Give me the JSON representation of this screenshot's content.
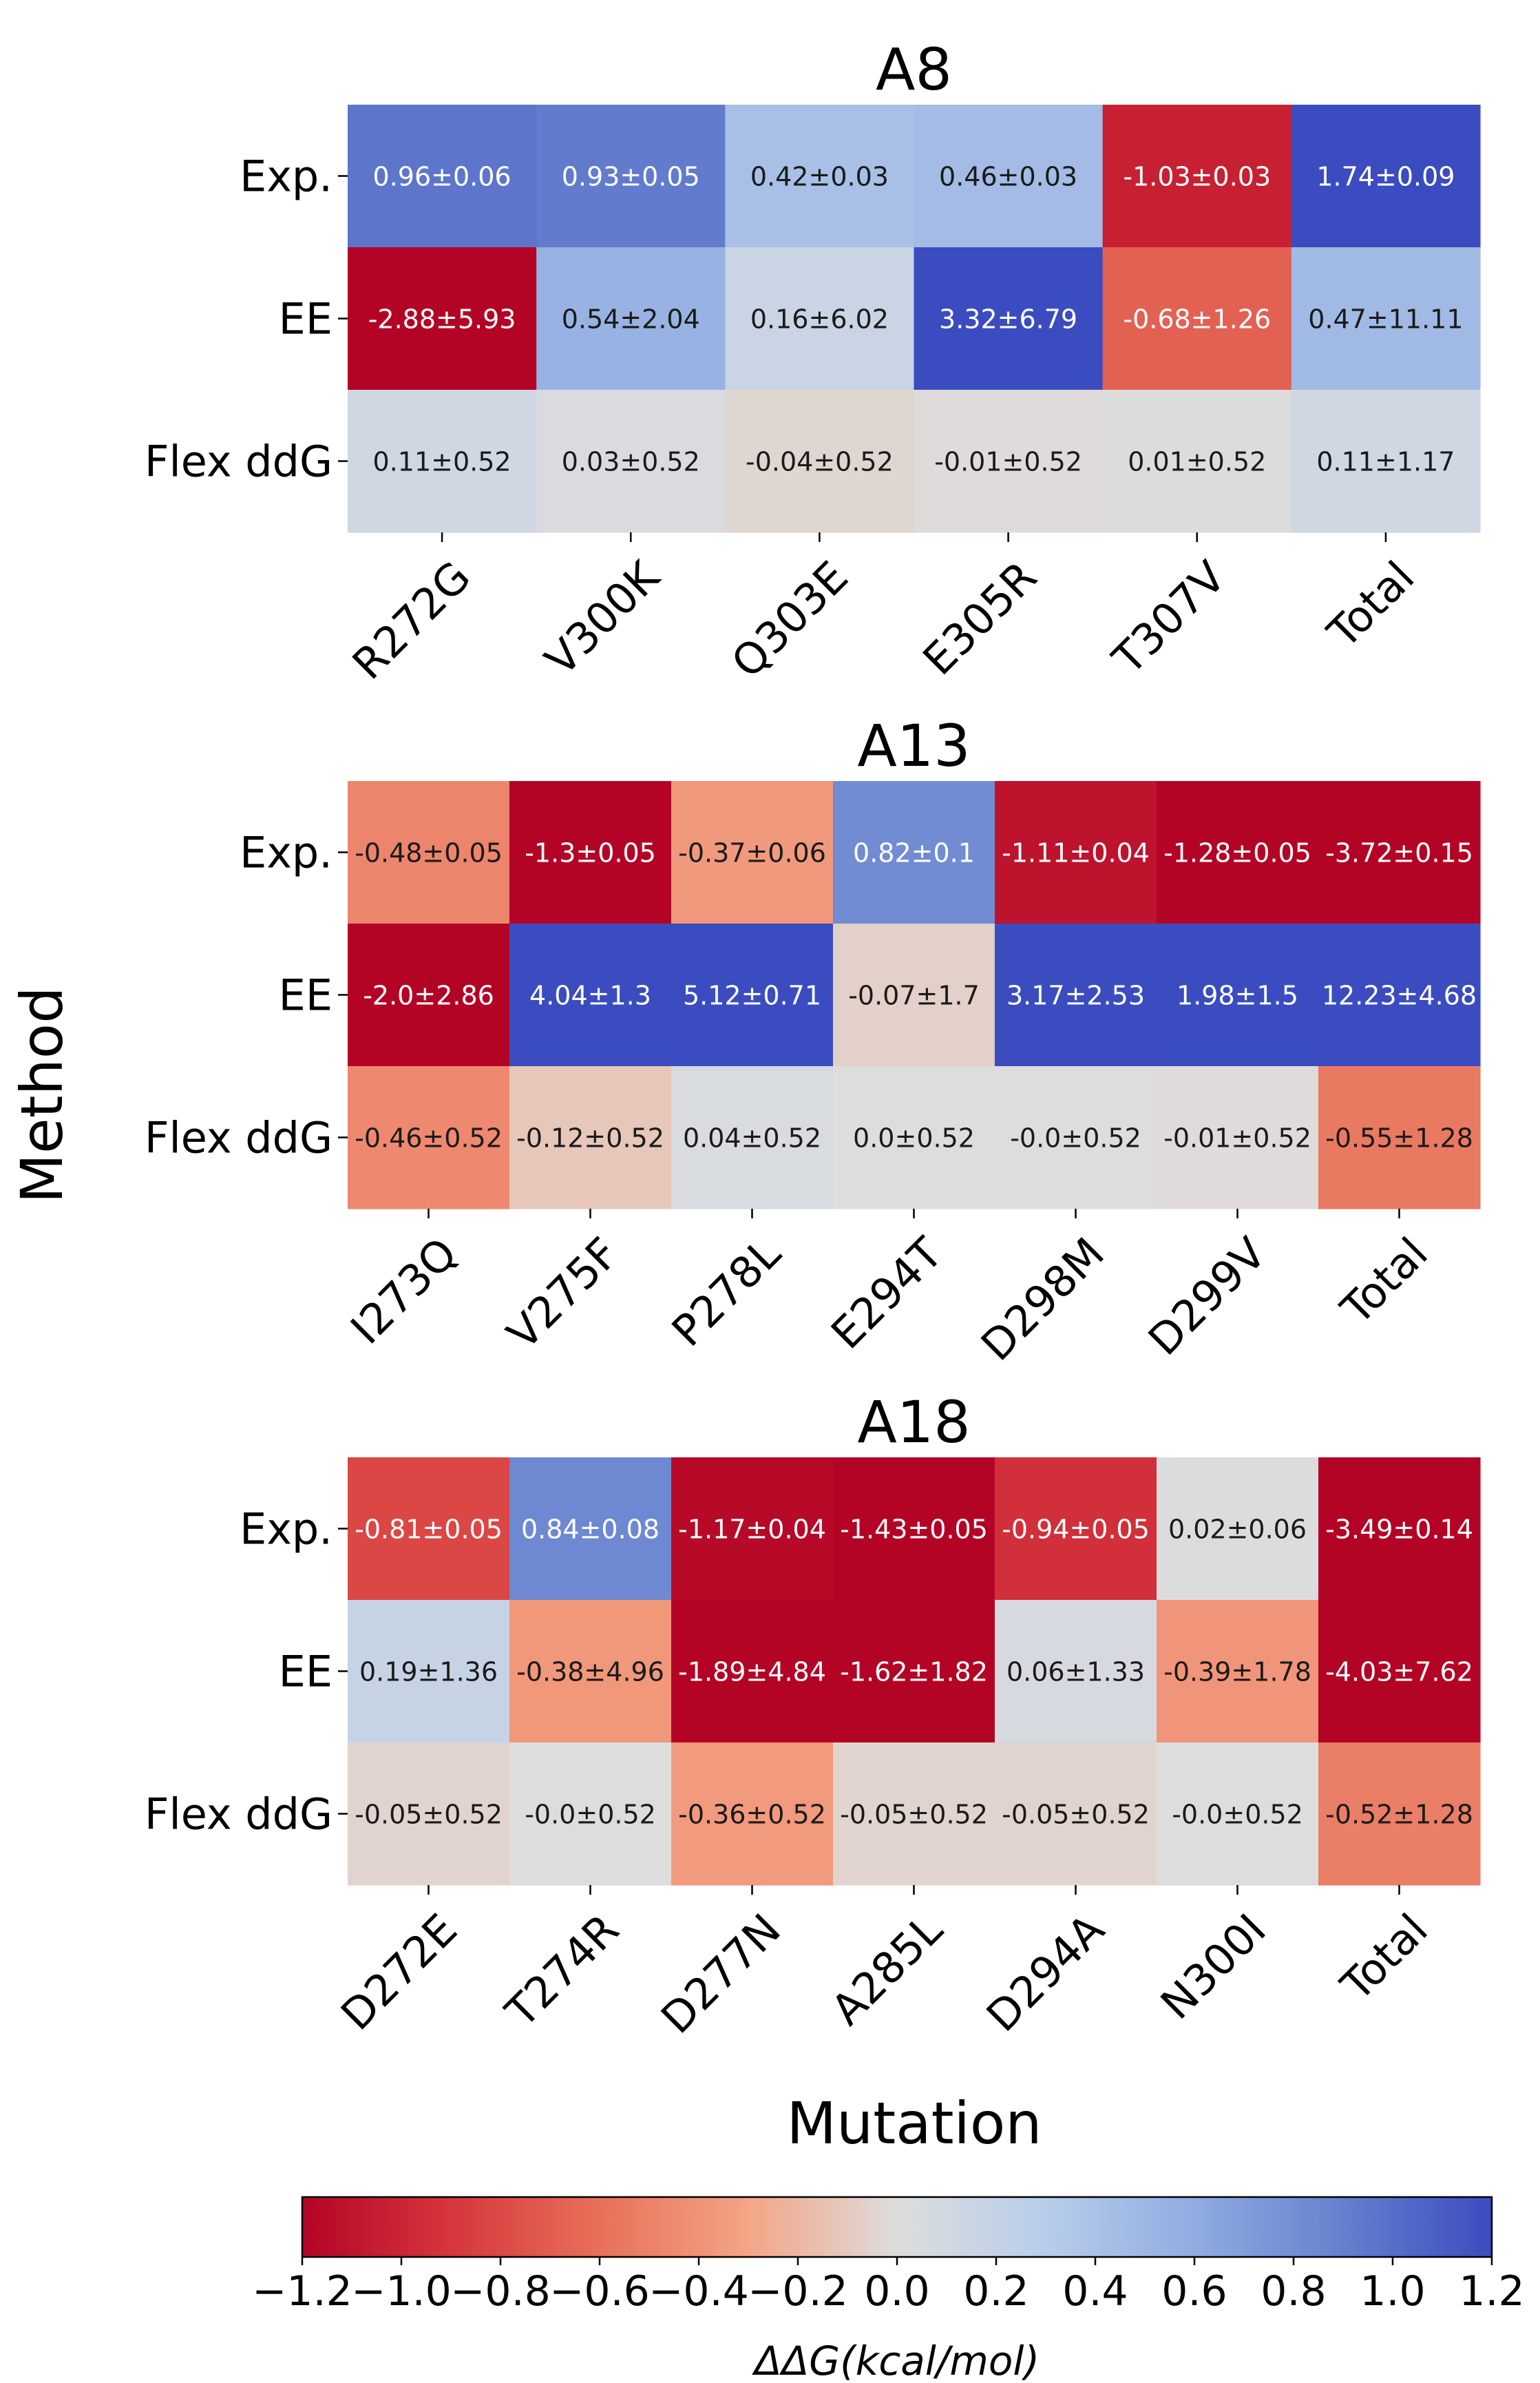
{
  "figure": {
    "ylabel": "Method",
    "xlabel": "Mutation",
    "colorbar": {
      "label": "ΔΔG(kcal/mol)",
      "vmin": -1.2,
      "vmax": 1.2,
      "ticks": [
        "−1.2",
        "−1.0",
        "−0.8",
        "−0.6",
        "−0.4",
        "−0.2",
        "0.0",
        "0.2",
        "0.4",
        "0.6",
        "0.8",
        "1.0",
        "1.2"
      ],
      "colormap": "coolwarm_r",
      "colors": {
        "negative_end": "#b40426",
        "center": "#dddddd",
        "positive_end": "#3b4cc0"
      }
    }
  },
  "chart_data": [
    {
      "type": "heatmap",
      "title": "A8",
      "rows": [
        "Exp.",
        "EE",
        "Flex ddG"
      ],
      "columns": [
        "R272G",
        "V300K",
        "Q303E",
        "E305R",
        "T307V",
        "Total"
      ],
      "values": [
        [
          0.96,
          0.93,
          0.42,
          0.46,
          -1.03,
          1.74
        ],
        [
          -2.88,
          0.54,
          0.16,
          3.32,
          -0.68,
          0.47
        ],
        [
          0.11,
          0.03,
          -0.04,
          -0.01,
          0.01,
          0.11
        ]
      ],
      "labels": [
        [
          "0.96±0.06",
          "0.93±0.05",
          "0.42±0.03",
          "0.46±0.03",
          "-1.03±0.03",
          "1.74±0.09"
        ],
        [
          "-2.88±5.93",
          "0.54±2.04",
          "0.16±6.02",
          "3.32±6.79",
          "-0.68±1.26",
          "0.47±11.11"
        ],
        [
          "0.11±0.52",
          "0.03±0.52",
          "-0.04±0.52",
          "-0.01±0.52",
          "0.01±0.52",
          "0.11±1.17"
        ]
      ]
    },
    {
      "type": "heatmap",
      "title": "A13",
      "rows": [
        "Exp.",
        "EE",
        "Flex ddG"
      ],
      "columns": [
        "I273Q",
        "V275F",
        "P278L",
        "E294T",
        "D298M",
        "D299V",
        "Total"
      ],
      "values": [
        [
          -0.48,
          -1.3,
          -0.37,
          0.82,
          -1.11,
          -1.28,
          -3.72
        ],
        [
          -2.0,
          4.04,
          5.12,
          -0.07,
          3.17,
          1.98,
          12.23
        ],
        [
          -0.46,
          -0.12,
          0.04,
          0.0,
          -0.0,
          -0.01,
          -0.55
        ]
      ],
      "labels": [
        [
          "-0.48±0.05",
          "-1.3±0.05",
          "-0.37±0.06",
          "0.82±0.1",
          "-1.11±0.04",
          "-1.28±0.05",
          "-3.72±0.15"
        ],
        [
          "-2.0±2.86",
          "4.04±1.3",
          "5.12±0.71",
          "-0.07±1.7",
          "3.17±2.53",
          "1.98±1.5",
          "12.23±4.68"
        ],
        [
          "-0.46±0.52",
          "-0.12±0.52",
          "0.04±0.52",
          "0.0±0.52",
          "-0.0±0.52",
          "-0.01±0.52",
          "-0.55±1.28"
        ]
      ]
    },
    {
      "type": "heatmap",
      "title": "A18",
      "rows": [
        "Exp.",
        "EE",
        "Flex ddG"
      ],
      "columns": [
        "D272E",
        "T274R",
        "D277N",
        "A285L",
        "D294A",
        "N300I",
        "Total"
      ],
      "values": [
        [
          -0.81,
          0.84,
          -1.17,
          -1.43,
          -0.94,
          0.02,
          -3.49
        ],
        [
          0.19,
          -0.38,
          -1.89,
          -1.62,
          0.06,
          -0.39,
          -4.03
        ],
        [
          -0.05,
          -0.0,
          -0.36,
          -0.05,
          -0.05,
          -0.0,
          -0.52
        ]
      ],
      "labels": [
        [
          "-0.81±0.05",
          "0.84±0.08",
          "-1.17±0.04",
          "-1.43±0.05",
          "-0.94±0.05",
          "0.02±0.06",
          "-3.49±0.14"
        ],
        [
          "0.19±1.36",
          "-0.38±4.96",
          "-1.89±4.84",
          "-1.62±1.82",
          "0.06±1.33",
          "-0.39±1.78",
          "-4.03±7.62"
        ],
        [
          "-0.05±0.52",
          "-0.0±0.52",
          "-0.36±0.52",
          "-0.05±0.52",
          "-0.05±0.52",
          "-0.0±0.52",
          "-0.52±1.28"
        ]
      ]
    }
  ]
}
